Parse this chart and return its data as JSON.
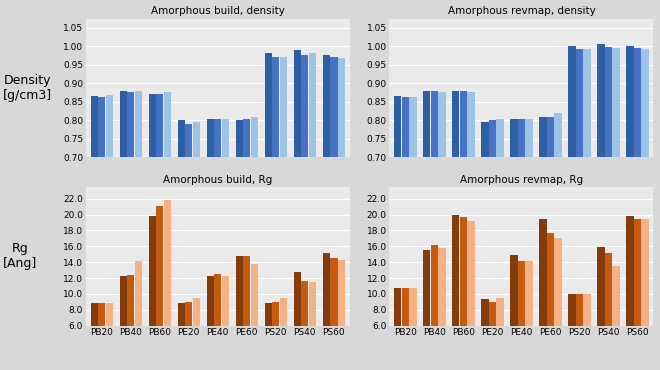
{
  "categories": [
    "PB20",
    "PB40",
    "PB60",
    "PE20",
    "PE40",
    "PE60",
    "PS20",
    "PS40",
    "PS60"
  ],
  "density_build": {
    "s1": [
      0.865,
      0.878,
      0.872,
      0.8,
      0.803,
      0.8,
      0.983,
      0.99,
      0.977
    ],
    "s2": [
      0.862,
      0.875,
      0.872,
      0.791,
      0.803,
      0.803,
      0.972,
      0.975,
      0.972
    ],
    "s3": [
      0.868,
      0.878,
      0.875,
      0.795,
      0.803,
      0.81,
      0.97,
      0.983,
      0.968
    ]
  },
  "density_revmap": {
    "s1": [
      0.866,
      0.878,
      0.878,
      0.795,
      0.803,
      0.81,
      1.0,
      1.005,
      1.0
    ],
    "s2": [
      0.863,
      0.878,
      0.878,
      0.8,
      0.803,
      0.81,
      0.993,
      0.997,
      0.995
    ],
    "s3": [
      0.862,
      0.875,
      0.875,
      0.803,
      0.803,
      0.82,
      0.992,
      0.994,
      0.993
    ]
  },
  "rg_build": {
    "s1": [
      8.9,
      12.2,
      19.8,
      8.8,
      12.3,
      14.8,
      8.9,
      12.8,
      15.2
    ],
    "s2": [
      8.9,
      12.4,
      21.1,
      9.0,
      12.5,
      14.8,
      9.0,
      11.6,
      14.5
    ],
    "s3": [
      8.8,
      14.2,
      21.9,
      9.5,
      12.3,
      13.8,
      9.5,
      11.5,
      14.3
    ]
  },
  "rg_revmap": {
    "s1": [
      10.8,
      15.5,
      20.0,
      9.3,
      14.9,
      19.5,
      10.0,
      15.9,
      19.8
    ],
    "s2": [
      10.8,
      16.2,
      19.7,
      9.0,
      14.2,
      17.7,
      10.0,
      15.2,
      19.5
    ],
    "s3": [
      10.8,
      15.8,
      19.2,
      9.5,
      14.1,
      17.0,
      10.0,
      13.5,
      19.5
    ]
  },
  "colors_density": [
    "#2E5FA3",
    "#4472C4",
    "#9DC3E6"
  ],
  "colors_rg": [
    "#843C0C",
    "#C55A11",
    "#F4B183"
  ],
  "ylabel_density": "Density\n[g/cm3]",
  "ylabel_rg": "Rg\n[Ang]",
  "title_density_build": "Amorphous build, density",
  "title_density_revmap": "Amorphous revmap, density",
  "title_rg_build": "Amorphous build, Rg",
  "title_rg_revmap": "Amorphous revmap, Rg",
  "ylim_density": [
    0.7,
    1.075
  ],
  "ylim_rg": [
    6.0,
    23.5
  ],
  "yticks_density": [
    0.7,
    0.75,
    0.8,
    0.85,
    0.9,
    0.95,
    1.0,
    1.05
  ],
  "yticks_rg": [
    6.0,
    8.0,
    10.0,
    12.0,
    14.0,
    16.0,
    18.0,
    20.0,
    22.0
  ],
  "panel_bg": "#EAEAEA",
  "outer_bg": "#D8D8D8",
  "grid_color": "#FFFFFF"
}
